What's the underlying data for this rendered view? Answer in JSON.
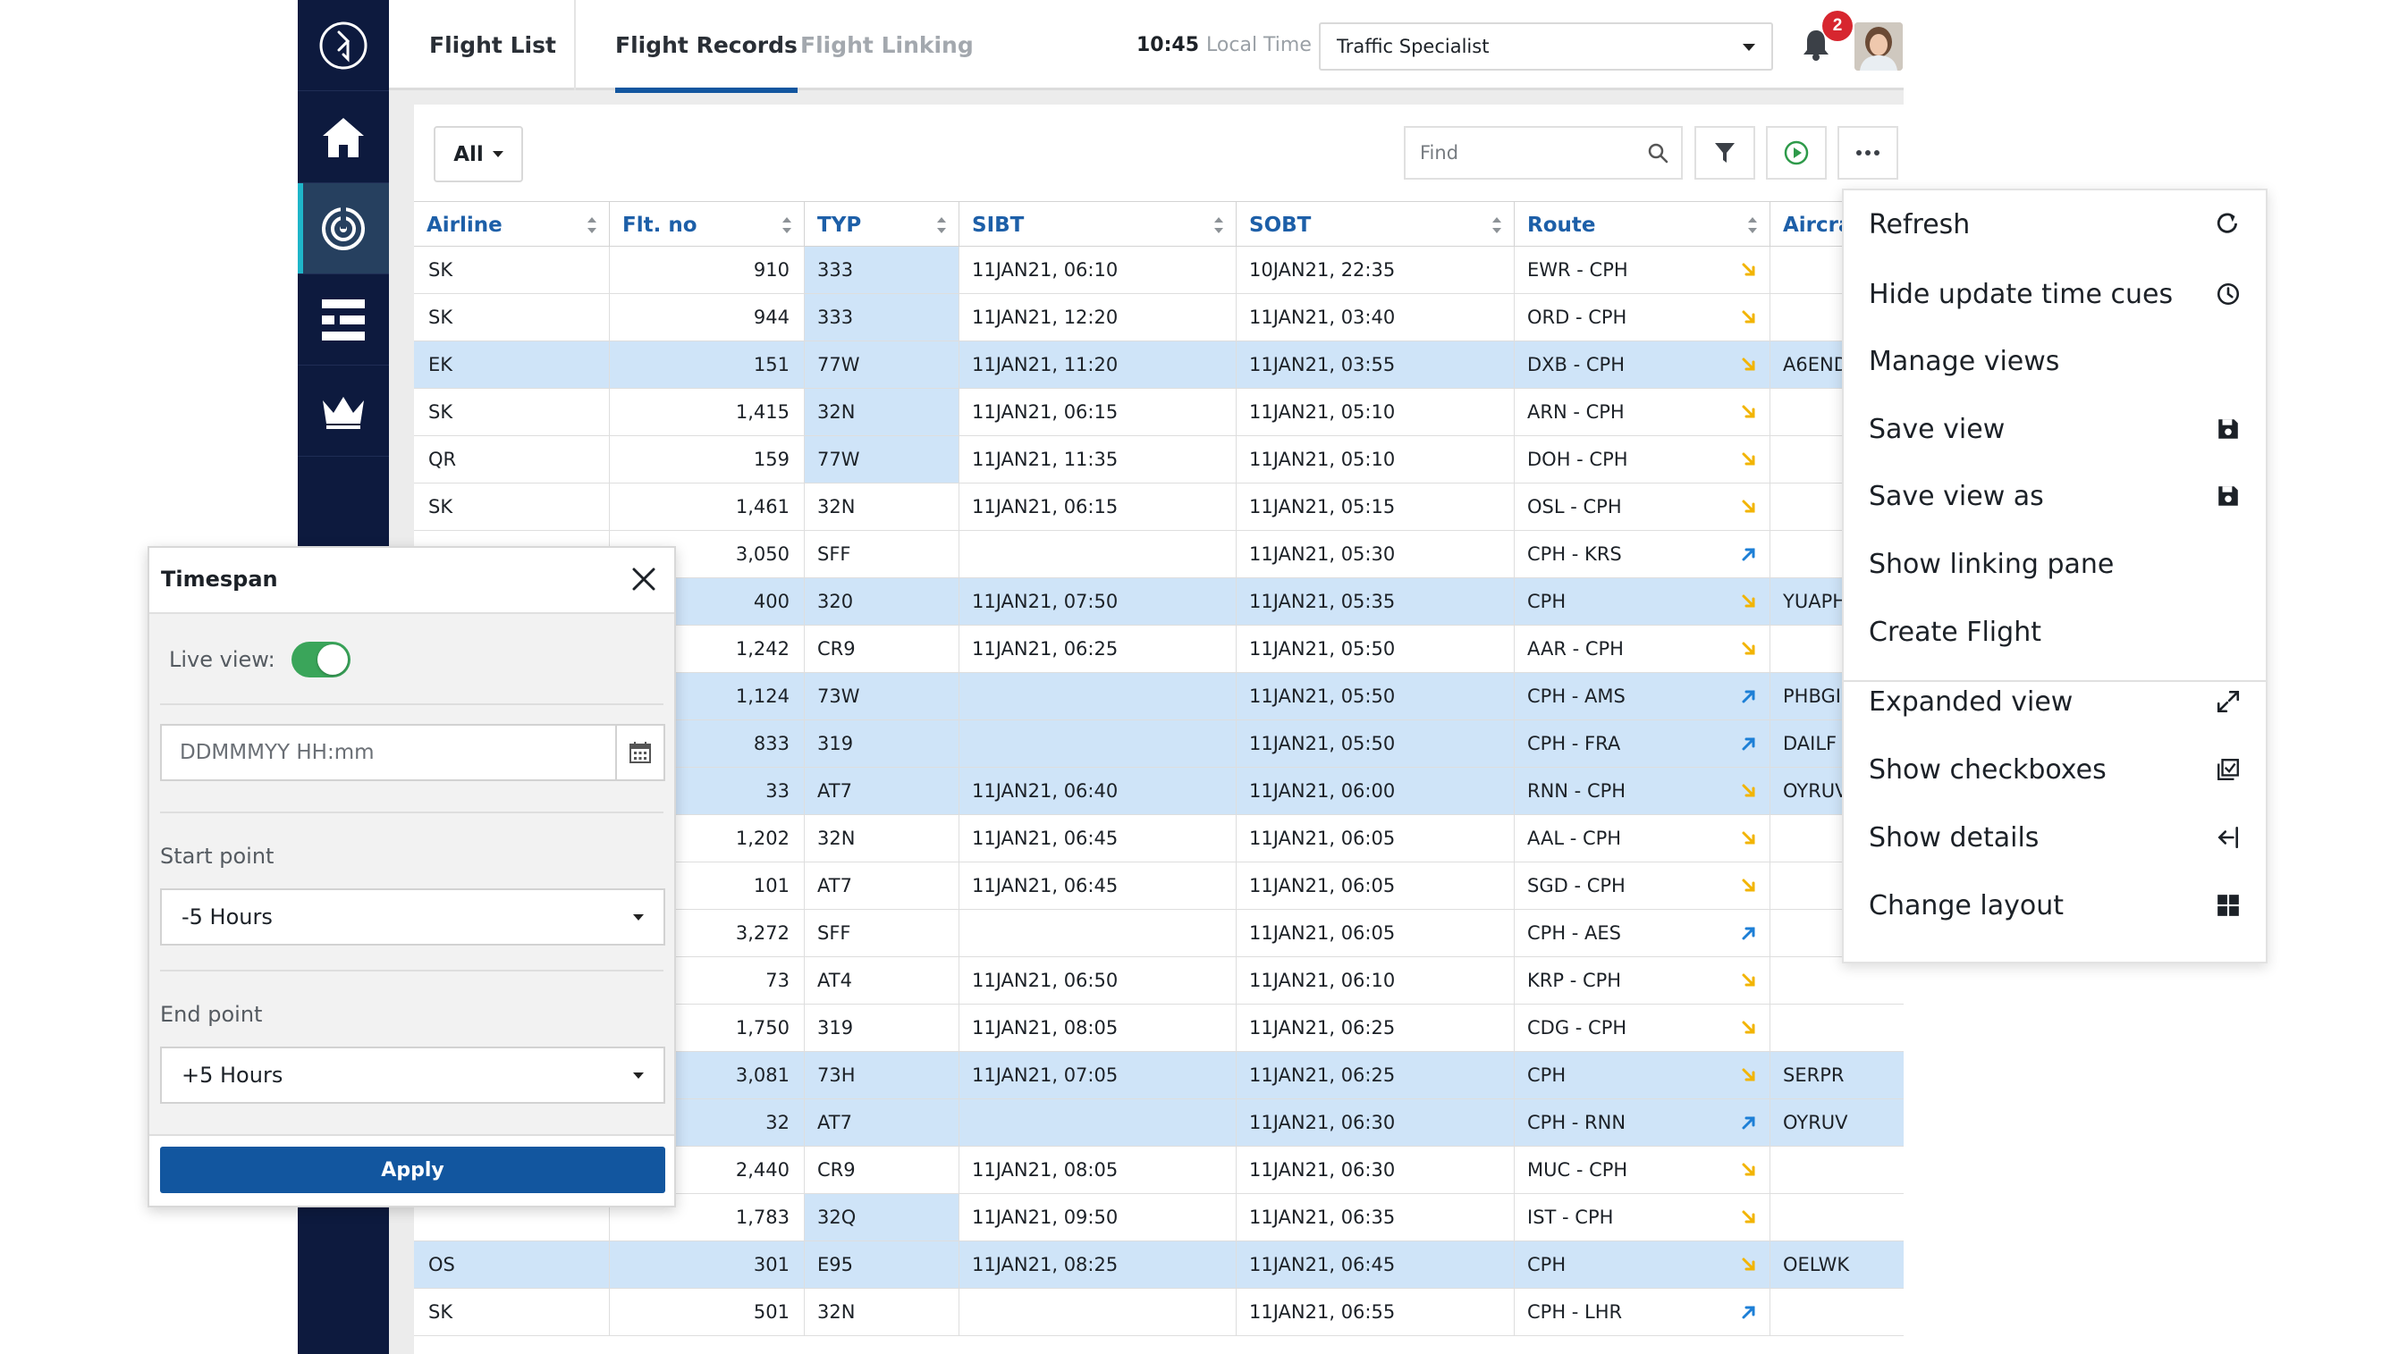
{
  "topbar": {
    "tabs": [
      {
        "label": "Flight List"
      },
      {
        "label": "Flight Records"
      },
      {
        "label": "Flight Linking"
      }
    ],
    "time": "10:45",
    "time_label": "Local Time",
    "role": "Traffic Specialist",
    "notification_count": "2"
  },
  "toolbar": {
    "filter_all": "All",
    "find_placeholder": "Find"
  },
  "table": {
    "columns": [
      "Airline",
      "Flt. no",
      "TYP",
      "SIBT",
      "SOBT",
      "Route",
      "Aircra"
    ],
    "rows": [
      {
        "airline": "SK",
        "flt": "910",
        "typ": "333",
        "sibt": "11JAN21, 06:10",
        "sobt": "10JAN21, 22:35",
        "route": "EWR - CPH",
        "reg": "",
        "dir": "in"
      },
      {
        "airline": "SK",
        "flt": "944",
        "typ": "333",
        "sibt": "11JAN21, 12:20",
        "sobt": "11JAN21, 03:40",
        "route": "ORD - CPH",
        "reg": "",
        "dir": "in"
      },
      {
        "airline": "EK",
        "flt": "151",
        "typ": "77W",
        "sibt": "11JAN21, 11:20",
        "sobt": "11JAN21, 03:55",
        "route": "DXB - CPH",
        "reg": "A6END",
        "dir": "in"
      },
      {
        "airline": "SK",
        "flt": "1,415",
        "typ": "32N",
        "sibt": "11JAN21, 06:15",
        "sobt": "11JAN21, 05:10",
        "route": "ARN - CPH",
        "reg": "",
        "dir": "in"
      },
      {
        "airline": "QR",
        "flt": "159",
        "typ": "77W",
        "sibt": "11JAN21, 11:35",
        "sobt": "11JAN21, 05:10",
        "route": "DOH - CPH",
        "reg": "",
        "dir": "in"
      },
      {
        "airline": "SK",
        "flt": "1,461",
        "typ": "32N",
        "sibt": "11JAN21, 06:15",
        "sobt": "11JAN21, 05:15",
        "route": "OSL - CPH",
        "reg": "",
        "dir": "in"
      },
      {
        "airline": "",
        "flt": "3,050",
        "typ": "SFF",
        "sibt": "",
        "sobt": "11JAN21, 05:30",
        "route": "CPH - KRS",
        "reg": "",
        "dir": "out"
      },
      {
        "airline": "",
        "flt": "400",
        "typ": "320",
        "sibt": "11JAN21, 07:50",
        "sobt": "11JAN21, 05:35",
        "route": "CPH",
        "reg": "YUAPH",
        "dir": "in"
      },
      {
        "airline": "",
        "flt": "1,242",
        "typ": "CR9",
        "sibt": "11JAN21, 06:25",
        "sobt": "11JAN21, 05:50",
        "route": "AAR - CPH",
        "reg": "",
        "dir": "in"
      },
      {
        "airline": "",
        "flt": "1,124",
        "typ": "73W",
        "sibt": "",
        "sobt": "11JAN21, 05:50",
        "route": "CPH - AMS",
        "reg": "PHBGI",
        "dir": "out"
      },
      {
        "airline": "",
        "flt": "833",
        "typ": "319",
        "sibt": "",
        "sobt": "11JAN21, 05:50",
        "route": "CPH - FRA",
        "reg": "DAILF",
        "dir": "out"
      },
      {
        "airline": "",
        "flt": "33",
        "typ": "AT7",
        "sibt": "11JAN21, 06:40",
        "sobt": "11JAN21, 06:00",
        "route": "RNN - CPH",
        "reg": "OYRUV",
        "dir": "in"
      },
      {
        "airline": "",
        "flt": "1,202",
        "typ": "32N",
        "sibt": "11JAN21, 06:45",
        "sobt": "11JAN21, 06:05",
        "route": "AAL - CPH",
        "reg": "",
        "dir": "in"
      },
      {
        "airline": "",
        "flt": "101",
        "typ": "AT7",
        "sibt": "11JAN21, 06:45",
        "sobt": "11JAN21, 06:05",
        "route": "SGD - CPH",
        "reg": "",
        "dir": "in"
      },
      {
        "airline": "",
        "flt": "3,272",
        "typ": "SFF",
        "sibt": "",
        "sobt": "11JAN21, 06:05",
        "route": "CPH - AES",
        "reg": "",
        "dir": "out"
      },
      {
        "airline": "",
        "flt": "73",
        "typ": "AT4",
        "sibt": "11JAN21, 06:50",
        "sobt": "11JAN21, 06:10",
        "route": "KRP - CPH",
        "reg": "",
        "dir": "in"
      },
      {
        "airline": "",
        "flt": "1,750",
        "typ": "319",
        "sibt": "11JAN21, 08:05",
        "sobt": "11JAN21, 06:25",
        "route": "CDG - CPH",
        "reg": "",
        "dir": "in"
      },
      {
        "airline": "",
        "flt": "3,081",
        "typ": "73H",
        "sibt": "11JAN21, 07:05",
        "sobt": "11JAN21, 06:25",
        "route": "CPH",
        "reg": "SERPR",
        "dir": "in"
      },
      {
        "airline": "",
        "flt": "32",
        "typ": "AT7",
        "sibt": "",
        "sobt": "11JAN21, 06:30",
        "route": "CPH - RNN",
        "reg": "OYRUV",
        "dir": "out"
      },
      {
        "airline": "",
        "flt": "2,440",
        "typ": "CR9",
        "sibt": "11JAN21, 08:05",
        "sobt": "11JAN21, 06:30",
        "route": "MUC - CPH",
        "reg": "",
        "dir": "in"
      },
      {
        "airline": "",
        "flt": "1,783",
        "typ": "32Q",
        "sibt": "11JAN21, 09:50",
        "sobt": "11JAN21, 06:35",
        "route": "IST - CPH",
        "reg": "",
        "dir": "in"
      },
      {
        "airline": "OS",
        "flt": "301",
        "typ": "E95",
        "sibt": "11JAN21, 08:25",
        "sobt": "11JAN21, 06:45",
        "route": "CPH",
        "reg": "OELWK",
        "dir": "in"
      },
      {
        "airline": "SK",
        "flt": "501",
        "typ": "32N",
        "sibt": "",
        "sobt": "11JAN21, 06:55",
        "route": "CPH - LHR",
        "reg": "",
        "dir": "out"
      }
    ]
  },
  "timespan": {
    "title": "Timespan",
    "live_view_label": "Live view:",
    "live_view_on": true,
    "date_placeholder": "DDMMMYY HH:mm",
    "start_label": "Start point",
    "start_value": "-5 Hours",
    "end_label": "End point",
    "end_value": "+5 Hours",
    "apply_label": "Apply"
  },
  "menu": {
    "items": [
      {
        "label": "Refresh",
        "icon": "refresh-icon"
      },
      {
        "label": "Hide update time cues",
        "icon": "clock-icon"
      },
      {
        "label": "Manage views",
        "icon": ""
      },
      {
        "label": "Save view",
        "icon": "save-icon"
      },
      {
        "label": "Save view as",
        "icon": "save-icon"
      },
      {
        "label": "Show linking pane",
        "icon": ""
      },
      {
        "label": "Create Flight",
        "icon": ""
      },
      {
        "label": "Expanded view",
        "icon": "expand-icon"
      },
      {
        "label": "Show checkboxes",
        "icon": "checkboxes-icon"
      },
      {
        "label": "Show details",
        "icon": "arrow-left-bar-icon"
      },
      {
        "label": "Change layout",
        "icon": "grid-icon"
      }
    ]
  },
  "colors": {
    "sidebar": "#0d1a3e",
    "accent": "#12569f",
    "highlight": "#cfe4f8",
    "inbound": "#f2b400",
    "outbound": "#1d7fd6"
  }
}
